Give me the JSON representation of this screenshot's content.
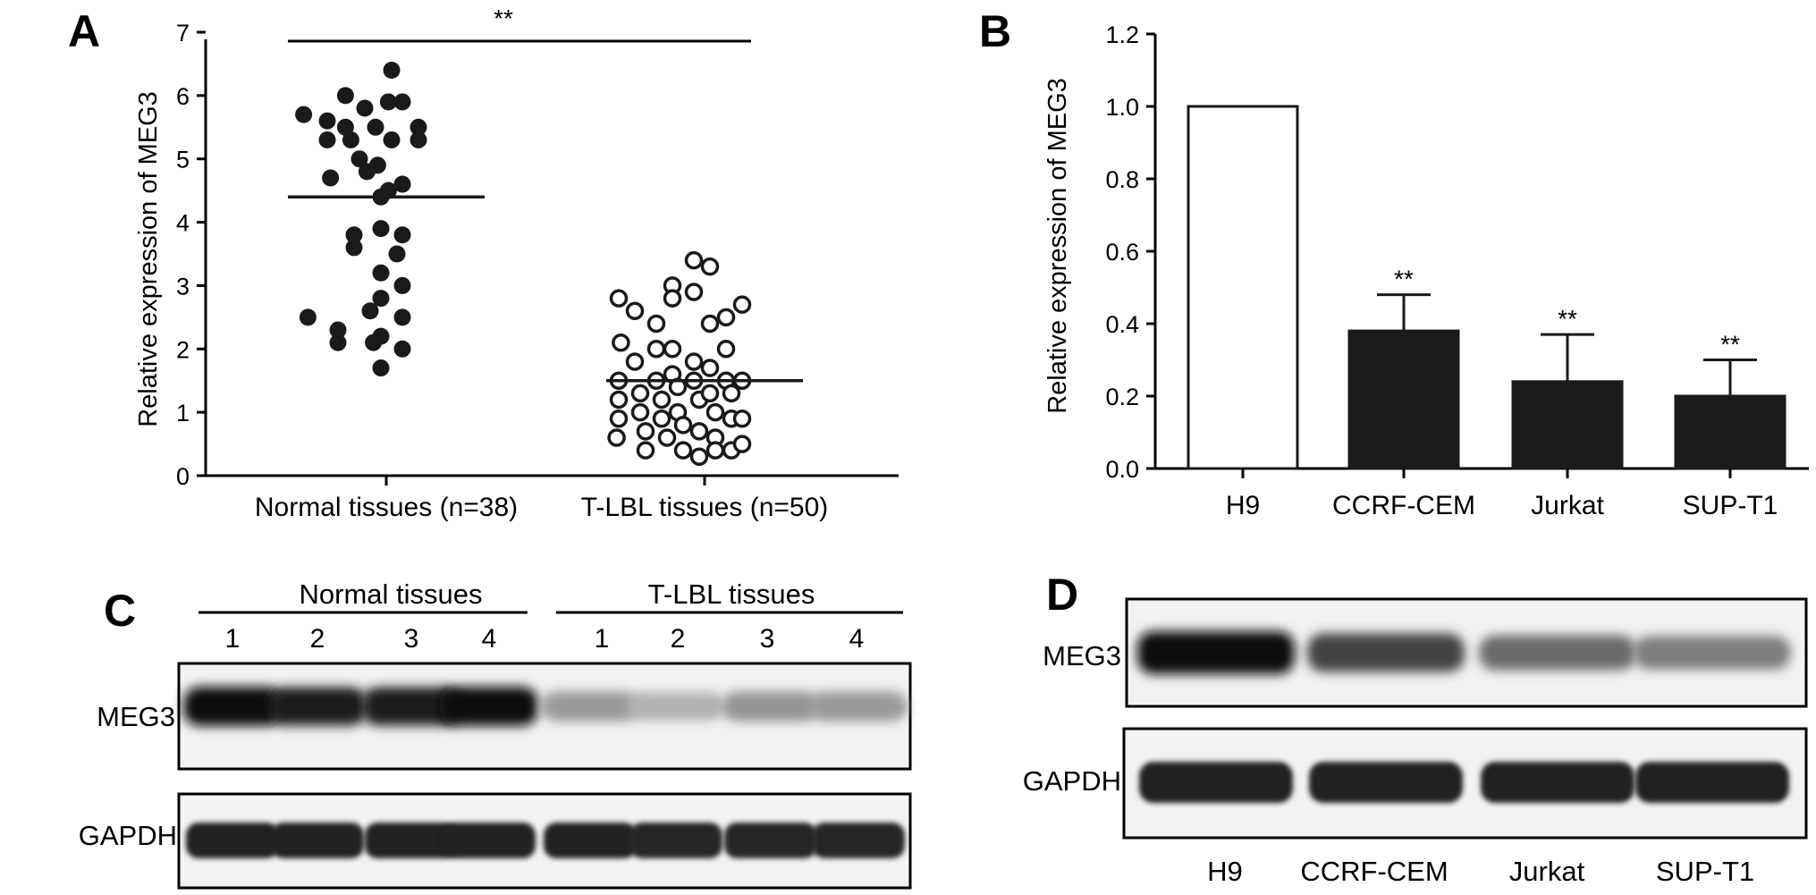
{
  "panels": {
    "a": "A",
    "b": "B",
    "c": "C",
    "d": "D"
  },
  "chart_data": [
    {
      "type": "scatter",
      "panel": "A",
      "ylabel": "Relative expression of MEG3",
      "ylim": [
        0,
        7
      ],
      "yticks": [
        "0",
        "1",
        "2",
        "3",
        "4",
        "5",
        "6",
        "7"
      ],
      "categories": [
        "Normal tissues (n=38)",
        "T-LBL tissues (n=50)"
      ],
      "significance": "**",
      "series": [
        {
          "name": "Normal tissues (n=38)",
          "marker": "filled-circle",
          "mean": 4.4,
          "points": [
            [
              -0.77,
              5.7
            ],
            [
              -0.73,
              2.5
            ],
            [
              -0.55,
              5.6
            ],
            [
              -0.55,
              5.3
            ],
            [
              -0.52,
              4.7
            ],
            [
              -0.45,
              2.3
            ],
            [
              -0.45,
              2.1
            ],
            [
              -0.38,
              6.0
            ],
            [
              -0.38,
              5.5
            ],
            [
              -0.33,
              5.3
            ],
            [
              -0.3,
              3.8
            ],
            [
              -0.3,
              3.6
            ],
            [
              -0.25,
              5.0
            ],
            [
              -0.2,
              5.8
            ],
            [
              -0.18,
              4.8
            ],
            [
              -0.15,
              2.6
            ],
            [
              -0.12,
              2.1
            ],
            [
              -0.1,
              5.5
            ],
            [
              -0.08,
              4.9
            ],
            [
              -0.05,
              4.4
            ],
            [
              -0.05,
              3.9
            ],
            [
              -0.05,
              3.2
            ],
            [
              -0.05,
              2.8
            ],
            [
              -0.05,
              2.2
            ],
            [
              -0.05,
              1.7
            ],
            [
              0.02,
              5.9
            ],
            [
              0.02,
              4.5
            ],
            [
              0.05,
              6.4
            ],
            [
              0.05,
              5.3
            ],
            [
              0.1,
              3.5
            ],
            [
              0.15,
              5.9
            ],
            [
              0.15,
              4.6
            ],
            [
              0.15,
              3.8
            ],
            [
              0.15,
              3.0
            ],
            [
              0.15,
              2.5
            ],
            [
              0.15,
              2.0
            ],
            [
              0.3,
              5.5
            ],
            [
              0.3,
              5.3
            ]
          ]
        },
        {
          "name": "T-LBL tissues (n=50)",
          "marker": "open-circle",
          "mean": 1.5,
          "points": [
            [
              -0.8,
              2.8
            ],
            [
              -0.78,
              2.1
            ],
            [
              -0.8,
              1.5
            ],
            [
              -0.8,
              1.2
            ],
            [
              -0.8,
              0.9
            ],
            [
              -0.82,
              0.6
            ],
            [
              -0.65,
              2.6
            ],
            [
              -0.65,
              1.8
            ],
            [
              -0.6,
              1.3
            ],
            [
              -0.6,
              1.0
            ],
            [
              -0.55,
              0.7
            ],
            [
              -0.55,
              0.4
            ],
            [
              -0.45,
              2.4
            ],
            [
              -0.45,
              2.0
            ],
            [
              -0.45,
              1.5
            ],
            [
              -0.4,
              1.2
            ],
            [
              -0.4,
              0.9
            ],
            [
              -0.35,
              0.6
            ],
            [
              -0.3,
              3.0
            ],
            [
              -0.3,
              2.8
            ],
            [
              -0.3,
              2.0
            ],
            [
              -0.3,
              1.6
            ],
            [
              -0.25,
              1.4
            ],
            [
              -0.25,
              1.0
            ],
            [
              -0.2,
              0.8
            ],
            [
              -0.2,
              0.4
            ],
            [
              -0.1,
              3.4
            ],
            [
              -0.1,
              2.9
            ],
            [
              -0.1,
              1.8
            ],
            [
              -0.1,
              1.5
            ],
            [
              -0.05,
              1.2
            ],
            [
              -0.05,
              0.7
            ],
            [
              -0.05,
              0.3
            ],
            [
              0.05,
              3.3
            ],
            [
              0.05,
              2.4
            ],
            [
              0.05,
              1.7
            ],
            [
              0.05,
              1.3
            ],
            [
              0.1,
              1.0
            ],
            [
              0.1,
              0.6
            ],
            [
              0.2,
              2.5
            ],
            [
              0.2,
              2.0
            ],
            [
              0.2,
              1.5
            ],
            [
              0.25,
              1.3
            ],
            [
              0.25,
              0.9
            ],
            [
              0.25,
              0.4
            ],
            [
              0.35,
              2.7
            ],
            [
              0.35,
              1.5
            ],
            [
              0.35,
              0.9
            ],
            [
              0.35,
              0.5
            ],
            [
              0.1,
              0.4
            ]
          ]
        }
      ]
    },
    {
      "type": "bar",
      "panel": "B",
      "ylabel": "Relative expression of MEG3",
      "ylim": [
        0,
        1.2
      ],
      "yticks": [
        "0.0",
        "0.2",
        "0.4",
        "0.6",
        "0.8",
        "1.0",
        "1.2"
      ],
      "categories": [
        "H9",
        "CCRF-CEM",
        "Jurkat",
        "SUP-T1"
      ],
      "values": [
        1.0,
        0.38,
        0.24,
        0.2
      ],
      "error": [
        0.0,
        0.1,
        0.13,
        0.1
      ],
      "significance": [
        "",
        "**",
        "**",
        "**"
      ],
      "bar_colors": [
        "#ffffff",
        "#1a1a1a",
        "#1a1a1a",
        "#1a1a1a"
      ]
    }
  ],
  "blot_c": {
    "group_labels": [
      "Normal tissues",
      "T-LBL tissues"
    ],
    "lanes": [
      "1",
      "2",
      "3",
      "4",
      "1",
      "2",
      "3",
      "4"
    ],
    "row_labels": [
      "MEG3",
      "GAPDH"
    ],
    "meg3_intensity": [
      1.0,
      0.95,
      0.95,
      1.0,
      0.4,
      0.3,
      0.42,
      0.4
    ],
    "gapdh_intensity": [
      0.92,
      0.92,
      0.92,
      0.92,
      0.92,
      0.9,
      0.9,
      0.9
    ]
  },
  "blot_d": {
    "row_labels": [
      "MEG3",
      "GAPDH"
    ],
    "lanes": [
      "H9",
      "CCRF-CEM",
      "Jurkat",
      "SUP-T1"
    ],
    "meg3_intensity": [
      1.0,
      0.78,
      0.6,
      0.52
    ],
    "gapdh_intensity": [
      0.92,
      0.92,
      0.92,
      0.92
    ]
  }
}
